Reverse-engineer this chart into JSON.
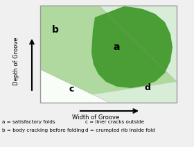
{
  "region_a_color": "#4a9e35",
  "region_b_color": "#b0d9a0",
  "region_c_color": "#f8fdf8",
  "region_d_color": "#d8edd8",
  "border_color": "#999999",
  "bg_color": "#f0f0f0",
  "label_a": "a",
  "label_b": "b",
  "label_c": "c",
  "label_d": "d",
  "ylabel": "Depth of Groove",
  "xlabel": "Width of Groove",
  "legend_a": "a = satisfactory folds",
  "legend_b": "b = body cracking before folding",
  "legend_c": "c = liner cracks outside",
  "legend_d": "d = crumpled rib inside fold",
  "label_fontsize": 8,
  "legend_fontsize": 5.2,
  "axis_label_fontsize": 6.0
}
